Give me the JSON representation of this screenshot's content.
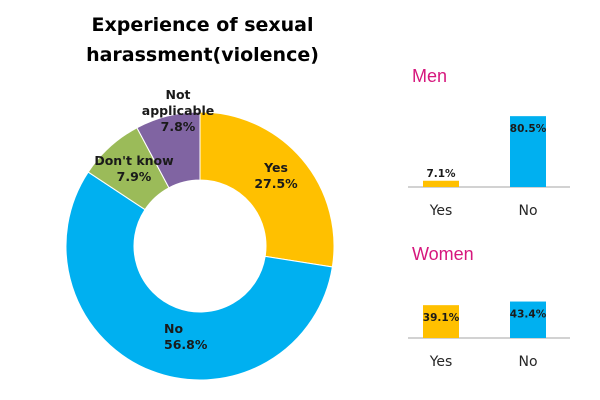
{
  "chart_data": [
    {
      "type": "pie",
      "style": "donut",
      "title": "Experience of sexual harassment(violence)",
      "title_lines": [
        "Experience of sexual",
        "harassment(violence)"
      ],
      "slices": [
        {
          "name": "Yes",
          "value": 27.5,
          "value_label": "27.5%",
          "color": "#ffc000"
        },
        {
          "name": "No",
          "value": 56.8,
          "value_label": "56.8%",
          "color": "#00b0f0"
        },
        {
          "name": "Don't know",
          "value": 7.9,
          "value_label": "7.9%",
          "color": "#9bbb59"
        },
        {
          "name": "Not applicable",
          "name_lines": [
            "Not",
            "applicable"
          ],
          "value": 7.8,
          "value_label": "7.8%",
          "color": "#8064a2"
        }
      ]
    },
    {
      "type": "bar",
      "title": "Men",
      "categories": [
        "Yes",
        "No"
      ],
      "values": [
        7.1,
        80.5
      ],
      "value_labels": [
        "7.1%",
        "80.5%"
      ],
      "colors": [
        "#ffc000",
        "#00b0f0"
      ],
      "ylim": [
        0,
        100
      ]
    },
    {
      "type": "bar",
      "title": "Women",
      "categories": [
        "Yes",
        "No"
      ],
      "values": [
        39.1,
        43.4
      ],
      "value_labels": [
        "39.1%",
        "43.4%"
      ],
      "colors": [
        "#ffc000",
        "#00b0f0"
      ],
      "ylim": [
        0,
        50
      ]
    }
  ]
}
